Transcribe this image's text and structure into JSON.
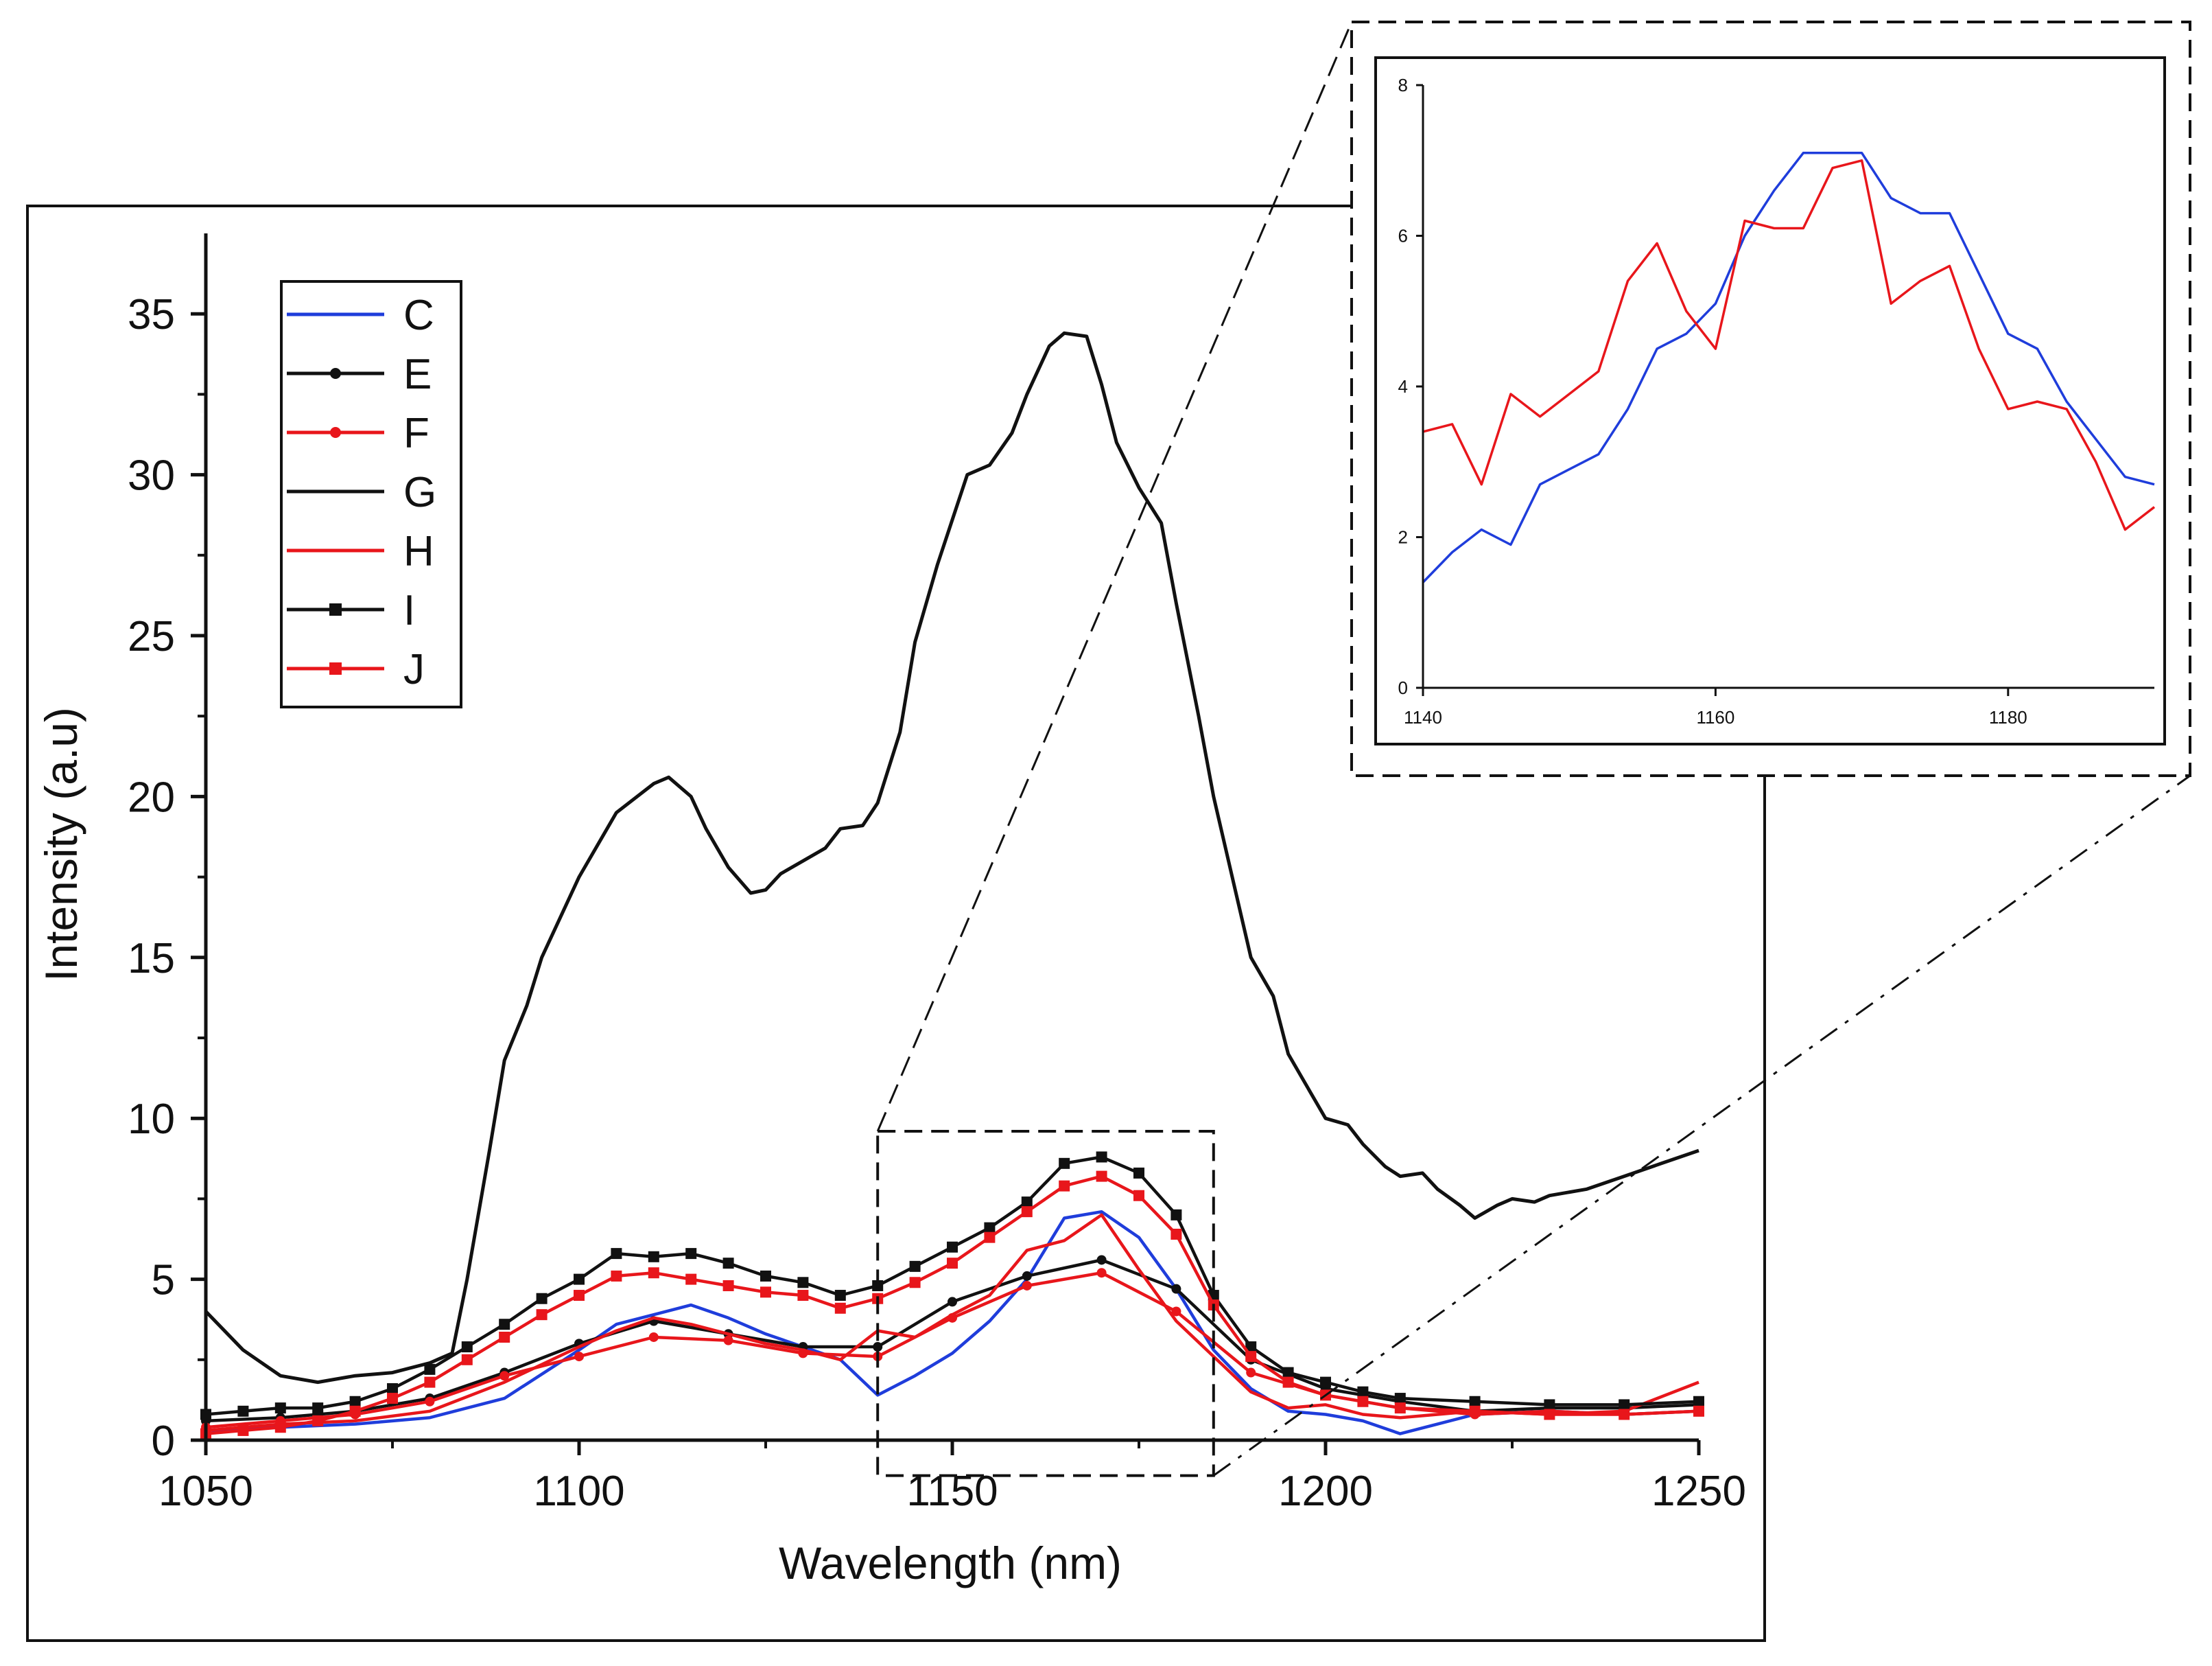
{
  "colors": {
    "blue": "#1f3ddb",
    "red": "#e8161b",
    "black": "#111111"
  },
  "chart_data": [
    {
      "id": "main",
      "type": "line",
      "title": "",
      "xlabel": "Wavelength (nm)",
      "ylabel": "Intensity (a.u)",
      "xlim": [
        1050,
        1250
      ],
      "ylim": [
        0,
        37.5
      ],
      "xticks": [
        1050,
        1100,
        1150,
        1200,
        1250
      ],
      "xtick_labels": [
        "1050",
        "1100",
        "1150",
        "1200",
        "1250"
      ],
      "yticks": [
        0,
        5,
        10,
        15,
        20,
        25,
        30,
        35
      ],
      "ytick_labels": [
        "0",
        "5",
        "10",
        "15",
        "20",
        "25",
        "30",
        "35"
      ],
      "zoom_box": {
        "x": [
          1140,
          1185
        ],
        "y": [
          -1.1,
          9.6
        ]
      },
      "series": [
        {
          "name": "C",
          "color": "blue",
          "marker": "none",
          "x": [
            1050,
            1060,
            1070,
            1080,
            1090,
            1100,
            1105,
            1110,
            1115,
            1120,
            1125,
            1130,
            1135,
            1140,
            1145,
            1150,
            1155,
            1160,
            1165,
            1170,
            1175,
            1180,
            1185,
            1190,
            1195,
            1200,
            1205,
            1210,
            1215,
            1220,
            1230,
            1240,
            1250
          ],
          "y": [
            0.3,
            0.4,
            0.5,
            0.7,
            1.3,
            2.8,
            3.6,
            3.9,
            4.2,
            3.8,
            3.3,
            2.9,
            2.5,
            1.4,
            2.0,
            2.7,
            3.7,
            5.0,
            6.9,
            7.1,
            6.3,
            4.7,
            2.8,
            1.6,
            0.9,
            0.8,
            0.6,
            0.2,
            0.5,
            0.8,
            0.9,
            0.8,
            0.9
          ]
        },
        {
          "name": "E",
          "color": "black",
          "marker": "dot",
          "x": [
            1050,
            1060,
            1070,
            1080,
            1090,
            1100,
            1110,
            1120,
            1130,
            1140,
            1150,
            1160,
            1170,
            1180,
            1190,
            1200,
            1210,
            1220,
            1230,
            1240,
            1250
          ],
          "y": [
            0.6,
            0.7,
            0.9,
            1.3,
            2.1,
            3.0,
            3.7,
            3.3,
            2.9,
            2.9,
            4.3,
            5.1,
            5.6,
            4.7,
            2.5,
            1.6,
            1.2,
            0.9,
            1.0,
            1.0,
            1.1
          ]
        },
        {
          "name": "F",
          "color": "red",
          "marker": "dot",
          "x": [
            1050,
            1060,
            1070,
            1080,
            1090,
            1100,
            1110,
            1120,
            1130,
            1140,
            1150,
            1160,
            1170,
            1180,
            1190,
            1200,
            1210,
            1220,
            1230,
            1240,
            1250
          ],
          "y": [
            0.4,
            0.6,
            0.8,
            1.2,
            2.0,
            2.6,
            3.2,
            3.1,
            2.7,
            2.6,
            3.8,
            4.8,
            5.2,
            4.0,
            2.1,
            1.4,
            1.0,
            0.8,
            0.9,
            0.8,
            0.9
          ]
        },
        {
          "name": "G",
          "color": "black",
          "marker": "none",
          "x": [
            1050,
            1055,
            1060,
            1065,
            1070,
            1075,
            1080,
            1083,
            1085,
            1088,
            1090,
            1093,
            1095,
            1100,
            1105,
            1110,
            1112,
            1115,
            1117,
            1120,
            1123,
            1125,
            1127,
            1130,
            1133,
            1135,
            1138,
            1140,
            1143,
            1145,
            1148,
            1150,
            1152,
            1155,
            1158,
            1160,
            1163,
            1165,
            1168,
            1170,
            1172,
            1175,
            1178,
            1180,
            1183,
            1185,
            1188,
            1190,
            1193,
            1195,
            1198,
            1200,
            1203,
            1205,
            1208,
            1210,
            1213,
            1215,
            1218,
            1220,
            1223,
            1225,
            1228,
            1230,
            1235,
            1240,
            1245,
            1250
          ],
          "y": [
            4.0,
            2.8,
            2.0,
            1.8,
            2.0,
            2.1,
            2.4,
            2.7,
            5.0,
            9.0,
            11.8,
            13.5,
            15.0,
            17.5,
            19.5,
            20.4,
            20.6,
            20.0,
            19.0,
            17.8,
            17.0,
            17.1,
            17.6,
            18.0,
            18.4,
            19.0,
            19.1,
            19.8,
            22.0,
            24.8,
            27.2,
            28.6,
            30.0,
            30.3,
            31.3,
            32.5,
            34.0,
            34.4,
            34.3,
            32.8,
            31.0,
            29.6,
            28.5,
            26.0,
            22.5,
            20.0,
            17.0,
            15.0,
            13.8,
            12.0,
            10.8,
            10.0,
            9.8,
            9.2,
            8.5,
            8.2,
            8.3,
            7.8,
            7.3,
            6.9,
            7.3,
            7.5,
            7.4,
            7.6,
            7.8,
            8.2,
            8.6,
            9.0
          ]
        },
        {
          "name": "H",
          "color": "red",
          "marker": "none",
          "x": [
            1050,
            1060,
            1070,
            1080,
            1090,
            1100,
            1105,
            1110,
            1115,
            1120,
            1125,
            1130,
            1135,
            1140,
            1145,
            1150,
            1155,
            1160,
            1165,
            1170,
            1175,
            1180,
            1185,
            1190,
            1195,
            1200,
            1205,
            1210,
            1220,
            1230,
            1240,
            1250
          ],
          "y": [
            0.3,
            0.5,
            0.6,
            0.9,
            1.8,
            2.9,
            3.4,
            3.8,
            3.6,
            3.3,
            3.0,
            2.8,
            2.5,
            3.4,
            3.2,
            3.9,
            4.5,
            5.9,
            6.2,
            7.0,
            5.3,
            3.7,
            2.6,
            1.5,
            1.0,
            1.1,
            0.8,
            0.7,
            0.9,
            0.8,
            0.9,
            1.8
          ]
        },
        {
          "name": "I",
          "color": "black",
          "marker": "square",
          "x": [
            1050,
            1055,
            1060,
            1065,
            1070,
            1075,
            1080,
            1085,
            1090,
            1095,
            1100,
            1105,
            1110,
            1115,
            1120,
            1125,
            1130,
            1135,
            1140,
            1145,
            1150,
            1155,
            1160,
            1165,
            1170,
            1175,
            1180,
            1185,
            1190,
            1195,
            1200,
            1205,
            1210,
            1220,
            1230,
            1240,
            1250
          ],
          "y": [
            0.8,
            0.9,
            1.0,
            1.0,
            1.2,
            1.6,
            2.2,
            2.9,
            3.6,
            4.4,
            5.0,
            5.8,
            5.7,
            5.8,
            5.5,
            5.1,
            4.9,
            4.5,
            4.8,
            5.4,
            6.0,
            6.6,
            7.4,
            8.6,
            8.8,
            8.3,
            7.0,
            4.5,
            2.9,
            2.1,
            1.8,
            1.5,
            1.3,
            1.2,
            1.1,
            1.1,
            1.2
          ]
        },
        {
          "name": "J",
          "color": "red",
          "marker": "square",
          "x": [
            1050,
            1055,
            1060,
            1065,
            1070,
            1075,
            1080,
            1085,
            1090,
            1095,
            1100,
            1105,
            1110,
            1115,
            1120,
            1125,
            1130,
            1135,
            1140,
            1145,
            1150,
            1155,
            1160,
            1165,
            1170,
            1175,
            1180,
            1185,
            1190,
            1195,
            1200,
            1205,
            1210,
            1220,
            1230,
            1240,
            1250
          ],
          "y": [
            0.2,
            0.3,
            0.4,
            0.6,
            0.9,
            1.3,
            1.8,
            2.5,
            3.2,
            3.9,
            4.5,
            5.1,
            5.2,
            5.0,
            4.8,
            4.6,
            4.5,
            4.1,
            4.4,
            4.9,
            5.5,
            6.3,
            7.1,
            7.9,
            8.2,
            7.6,
            6.4,
            4.2,
            2.6,
            1.8,
            1.4,
            1.2,
            1.0,
            0.9,
            0.8,
            0.8,
            0.9
          ]
        }
      ],
      "legend": {
        "position": "top-left",
        "entries": [
          "C",
          "E",
          "F",
          "G",
          "H",
          "I",
          "J"
        ]
      }
    },
    {
      "id": "inset",
      "type": "line",
      "title": "",
      "xlabel": "",
      "ylabel": "",
      "xlim": [
        1140,
        1190
      ],
      "ylim": [
        0,
        8
      ],
      "xticks": [
        1140,
        1160,
        1180
      ],
      "xtick_labels": [
        "1140",
        "1160",
        "1180"
      ],
      "yticks": [
        0,
        2,
        4,
        6,
        8
      ],
      "ytick_labels": [
        "0",
        "2",
        "4",
        "6",
        "8"
      ],
      "series": [
        {
          "name": "C",
          "color": "blue",
          "x": [
            1140,
            1142,
            1144,
            1146,
            1148,
            1150,
            1152,
            1154,
            1156,
            1158,
            1160,
            1162,
            1164,
            1166,
            1168,
            1170,
            1172,
            1174,
            1176,
            1178,
            1180,
            1182,
            1184,
            1186,
            1188,
            1190
          ],
          "y": [
            1.4,
            1.8,
            2.1,
            1.9,
            2.7,
            2.9,
            3.1,
            3.7,
            4.5,
            4.7,
            5.1,
            6.0,
            6.6,
            7.1,
            7.1,
            7.1,
            6.5,
            6.3,
            6.3,
            5.5,
            4.7,
            4.5,
            3.8,
            3.3,
            2.8,
            2.7
          ]
        },
        {
          "name": "H",
          "color": "red",
          "x": [
            1140,
            1142,
            1144,
            1146,
            1148,
            1150,
            1152,
            1154,
            1156,
            1158,
            1160,
            1162,
            1164,
            1166,
            1168,
            1170,
            1172,
            1174,
            1176,
            1178,
            1180,
            1182,
            1184,
            1186,
            1188,
            1190
          ],
          "y": [
            3.4,
            3.5,
            2.7,
            3.9,
            3.6,
            3.9,
            4.2,
            5.4,
            5.9,
            5.0,
            4.5,
            6.2,
            6.1,
            6.1,
            6.9,
            7.0,
            5.1,
            5.4,
            5.6,
            4.5,
            3.7,
            3.8,
            3.7,
            3.0,
            2.1,
            2.4
          ]
        }
      ]
    }
  ]
}
